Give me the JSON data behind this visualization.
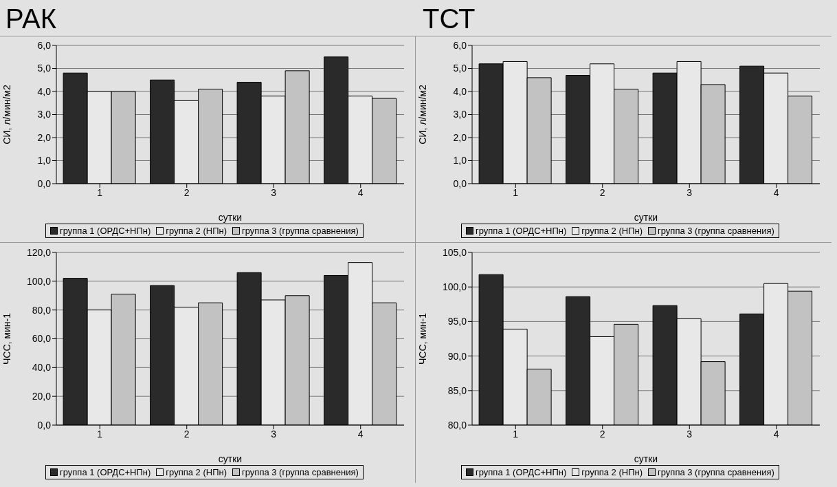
{
  "chart_data": [
    {
      "type": "bar",
      "title": "РАК",
      "categories": [
        "1",
        "2",
        "3",
        "4"
      ],
      "xlabel": "сутки",
      "ylabel": "СИ, л/мин/м2",
      "ylim": [
        0,
        6
      ],
      "yticks": [
        {
          "value": 0,
          "label": "0,0"
        },
        {
          "value": 1,
          "label": "1,0"
        },
        {
          "value": 2,
          "label": "2,0"
        },
        {
          "value": 3,
          "label": "3,0"
        },
        {
          "value": 4,
          "label": "4,0"
        },
        {
          "value": 5,
          "label": "5,0"
        },
        {
          "value": 6,
          "label": "6,0"
        }
      ],
      "grid": "y",
      "legend": "bottom",
      "series": [
        {
          "name": "группа 1 (ОРДС+НПн)",
          "color": "#2a2a2a",
          "values": [
            4.8,
            4.5,
            4.4,
            5.5
          ]
        },
        {
          "name": "группа 2 (НПн)",
          "color": "#e8e8e8",
          "values": [
            4.0,
            3.6,
            3.8,
            3.8
          ]
        },
        {
          "name": "группа 3 (группа сравнения)",
          "color": "#c2c2c2",
          "values": [
            4.0,
            4.1,
            4.9,
            3.7
          ]
        }
      ]
    },
    {
      "type": "bar",
      "title": "ТСТ",
      "categories": [
        "1",
        "2",
        "3",
        "4"
      ],
      "xlabel": "сутки",
      "ylabel": "СИ, л/мин/м2",
      "ylim": [
        0,
        6
      ],
      "yticks": [
        {
          "value": 0,
          "label": "0,0"
        },
        {
          "value": 1,
          "label": "1,0"
        },
        {
          "value": 2,
          "label": "2,0"
        },
        {
          "value": 3,
          "label": "3,0"
        },
        {
          "value": 4,
          "label": "4,0"
        },
        {
          "value": 5,
          "label": "5,0"
        },
        {
          "value": 6,
          "label": "6,0"
        }
      ],
      "grid": "y",
      "legend": "bottom",
      "series": [
        {
          "name": "группа 1 (ОРДС+НПн)",
          "color": "#2a2a2a",
          "values": [
            5.2,
            4.7,
            4.8,
            5.1
          ]
        },
        {
          "name": "группа 2 (НПн)",
          "color": "#e8e8e8",
          "values": [
            5.3,
            5.2,
            5.3,
            4.8
          ]
        },
        {
          "name": "группа 3 (группа сравнения)",
          "color": "#c2c2c2",
          "values": [
            4.6,
            4.1,
            4.3,
            3.8
          ]
        }
      ]
    },
    {
      "type": "bar",
      "categories": [
        "1",
        "2",
        "3",
        "4"
      ],
      "xlabel": "сутки",
      "ylabel": "ЧСС, мин-1",
      "ylim": [
        0,
        120
      ],
      "yticks": [
        {
          "value": 0,
          "label": "0,0"
        },
        {
          "value": 20,
          "label": "20,0"
        },
        {
          "value": 40,
          "label": "40,0"
        },
        {
          "value": 60,
          "label": "60,0"
        },
        {
          "value": 80,
          "label": "80,0"
        },
        {
          "value": 100,
          "label": "100,0"
        },
        {
          "value": 120,
          "label": "120,0"
        }
      ],
      "grid": "y",
      "legend": "bottom",
      "series": [
        {
          "name": "группа 1 (ОРДС+НПн)",
          "color": "#2a2a2a",
          "values": [
            102,
            97,
            106,
            104
          ]
        },
        {
          "name": "группа 2 (НПн)",
          "color": "#e8e8e8",
          "values": [
            80,
            82,
            87,
            113
          ]
        },
        {
          "name": "группа 3 (группа сравнения)",
          "color": "#c2c2c2",
          "values": [
            91,
            85,
            90,
            85
          ]
        }
      ]
    },
    {
      "type": "bar",
      "categories": [
        "1",
        "2",
        "3",
        "4"
      ],
      "xlabel": "сутки",
      "ylabel": "ЧСС, мин-1",
      "ylim": [
        80,
        105
      ],
      "yticks": [
        {
          "value": 80,
          "label": "80,0"
        },
        {
          "value": 85,
          "label": "85,0"
        },
        {
          "value": 90,
          "label": "90,0"
        },
        {
          "value": 95,
          "label": "95,0"
        },
        {
          "value": 100,
          "label": "100,0"
        },
        {
          "value": 105,
          "label": "105,0"
        }
      ],
      "grid": "y",
      "legend": "bottom",
      "series": [
        {
          "name": "группа 1 (ОРДС+НПн)",
          "color": "#2a2a2a",
          "values": [
            101.8,
            98.6,
            97.3,
            96.1
          ]
        },
        {
          "name": "группа 2 (НПн)",
          "color": "#e8e8e8",
          "values": [
            93.9,
            92.8,
            95.4,
            100.5
          ]
        },
        {
          "name": "группа 3 (группа сравнения)",
          "color": "#c2c2c2",
          "values": [
            88.1,
            94.6,
            89.2,
            99.4
          ]
        }
      ]
    }
  ]
}
